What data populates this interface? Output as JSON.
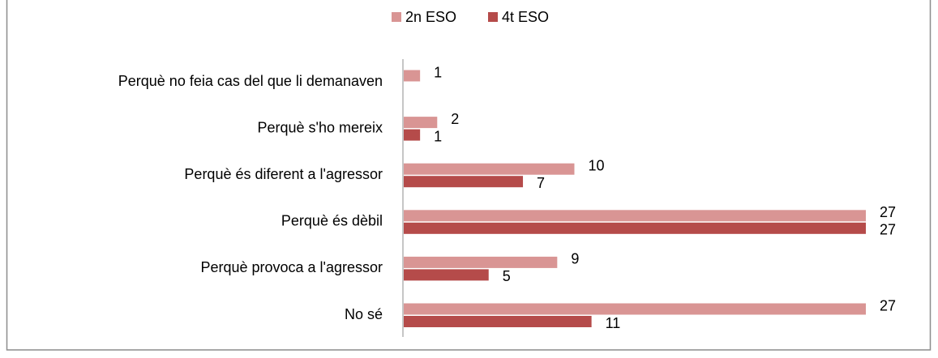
{
  "chart_data": {
    "type": "bar",
    "orientation": "horizontal",
    "categories": [
      "Perquè no feia cas del que li demanaven",
      "Perquè s'ho mereix",
      "Perquè és diferent a l'agressor",
      "Perquè és dèbil",
      "Perquè provoca a l'agressor",
      "No sé"
    ],
    "series": [
      {
        "name": "2n ESO",
        "color": "#d99594",
        "values": [
          1,
          2,
          10,
          27,
          9,
          27
        ]
      },
      {
        "name": "4t ESO",
        "color": "#b54b4a",
        "values": [
          null,
          1,
          7,
          27,
          5,
          11
        ]
      }
    ],
    "legend": "top"
  }
}
